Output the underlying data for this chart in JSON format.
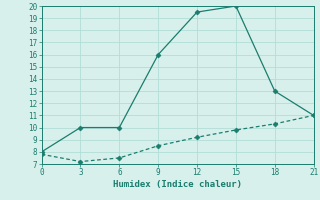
{
  "line1_x": [
    0,
    3,
    6,
    9,
    12,
    15,
    18,
    21
  ],
  "line1_y": [
    8,
    10,
    10,
    16,
    19.5,
    20,
    13,
    11
  ],
  "line2_x": [
    0,
    3,
    6,
    9,
    12,
    15,
    18,
    21
  ],
  "line2_y": [
    7.8,
    7.2,
    7.5,
    8.5,
    9.2,
    9.8,
    10.3,
    11
  ],
  "line_color": "#1a7d6e",
  "bg_color": "#d8f0ec",
  "grid_color": "#b0ddd6",
  "xlabel": "Humidex (Indice chaleur)",
  "xlim": [
    0,
    21
  ],
  "ylim": [
    7,
    20
  ],
  "xticks": [
    0,
    3,
    6,
    9,
    12,
    15,
    18,
    21
  ],
  "yticks": [
    7,
    8,
    9,
    10,
    11,
    12,
    13,
    14,
    15,
    16,
    17,
    18,
    19,
    20
  ],
  "label_fontsize": 6.5,
  "tick_fontsize": 5.5
}
